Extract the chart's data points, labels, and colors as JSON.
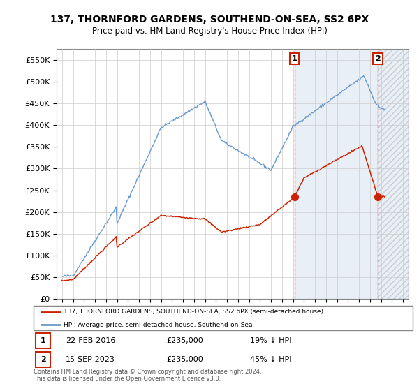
{
  "title": "137, THORNFORD GARDENS, SOUTHEND-ON-SEA, SS2 6PX",
  "subtitle": "Price paid vs. HM Land Registry's House Price Index (HPI)",
  "legend_line1": "137, THORNFORD GARDENS, SOUTHEND-ON-SEA, SS2 6PX (semi-detached house)",
  "legend_line2": "HPI: Average price, semi-detached house, Southend-on-Sea",
  "annotation1": {
    "label": "1",
    "date": "22-FEB-2016",
    "price": "£235,000",
    "note": "19% ↓ HPI"
  },
  "annotation2": {
    "label": "2",
    "date": "15-SEP-2023",
    "price": "£235,000",
    "note": "45% ↓ HPI"
  },
  "footer": "Contains HM Land Registry data © Crown copyright and database right 2024.\nThis data is licensed under the Open Government Licence v3.0.",
  "hpi_color": "#6699cc",
  "price_color": "#cc2200",
  "shade_color": "#ddeeff",
  "annotation_color": "#cc2200",
  "ylim": [
    0,
    575000
  ],
  "yticks": [
    0,
    50000,
    100000,
    150000,
    200000,
    250000,
    300000,
    350000,
    400000,
    450000,
    500000,
    550000
  ],
  "background_color": "#ffffff",
  "grid_color": "#cccccc",
  "sale1_x": 2016.13,
  "sale1_y": 235000,
  "sale2_x": 2023.71,
  "sale2_y": 235000,
  "xlim": [
    1994.5,
    2026.5
  ],
  "xticks": [
    1995,
    1996,
    1997,
    1998,
    1999,
    2000,
    2001,
    2002,
    2003,
    2004,
    2005,
    2006,
    2007,
    2008,
    2009,
    2010,
    2011,
    2012,
    2013,
    2014,
    2015,
    2016,
    2017,
    2018,
    2019,
    2020,
    2021,
    2022,
    2023,
    2024,
    2025,
    2026
  ]
}
